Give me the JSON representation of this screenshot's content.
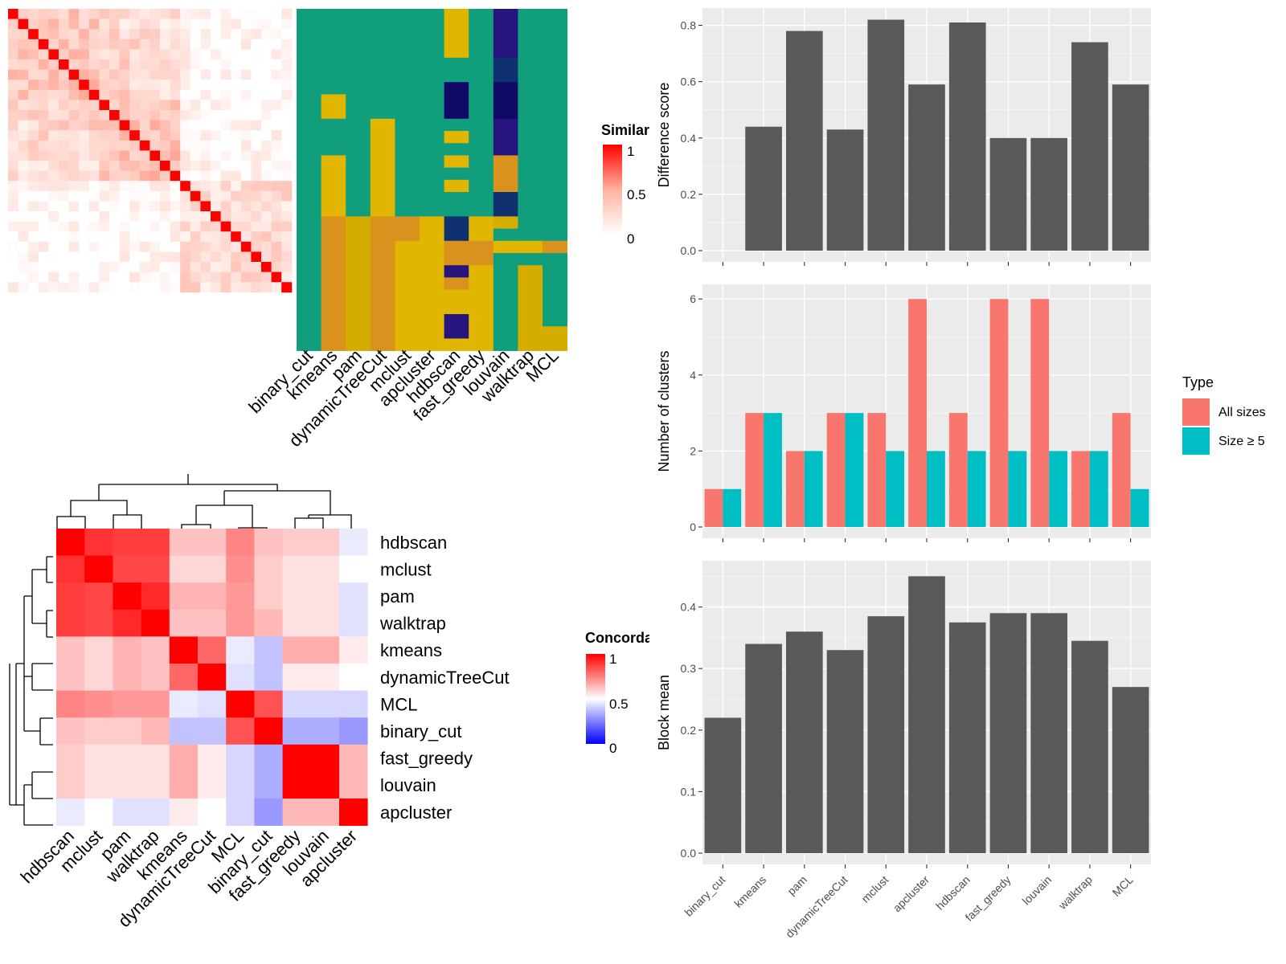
{
  "chart_data": [
    {
      "type": "heatmap",
      "name": "cell_similarity",
      "rows": 28,
      "cols": 28,
      "note_cells": "symmetric similarity matrix, diagonal 1, values 0..1",
      "legend_title": "Similarity",
      "legend_ticks": [
        "1",
        "0.5",
        "0"
      ],
      "colors": {
        "high": "#ff0000",
        "mid": "#ffb1a1",
        "low": "#ffffff"
      }
    },
    {
      "type": "heatmap",
      "name": "cluster_assignments",
      "methods": [
        "binary_cut",
        "kmeans",
        "pam",
        "dynamicTreeCut",
        "mclust",
        "apcluster",
        "hdbscan",
        "fast_greedy",
        "louvain",
        "walktrap",
        "MCL"
      ],
      "palette": {
        "A": "#119e7c",
        "B": "#e0b600",
        "C": "#d9921e",
        "D": "#27147f",
        "E": "#0f316f",
        "F": "#0f0a66",
        "G": "#d4ad00"
      }
    },
    {
      "type": "heatmap",
      "name": "concordance",
      "labels": [
        "hdbscan",
        "mclust",
        "pam",
        "walktrap",
        "kmeans",
        "dynamicTreeCut",
        "MCL",
        "binary_cut",
        "fast_greedy",
        "louvain",
        "apcluster"
      ],
      "values": [
        [
          1.0,
          0.9,
          0.88,
          0.88,
          0.62,
          0.62,
          0.74,
          0.62,
          0.6,
          0.6,
          0.46
        ],
        [
          0.9,
          1.0,
          0.86,
          0.86,
          0.58,
          0.58,
          0.72,
          0.6,
          0.56,
          0.56,
          0.5
        ],
        [
          0.88,
          0.86,
          1.0,
          0.92,
          0.65,
          0.65,
          0.7,
          0.6,
          0.56,
          0.56,
          0.44
        ],
        [
          0.88,
          0.86,
          0.92,
          1.0,
          0.62,
          0.62,
          0.7,
          0.64,
          0.56,
          0.56,
          0.44
        ],
        [
          0.62,
          0.58,
          0.65,
          0.62,
          1.0,
          0.8,
          0.46,
          0.38,
          0.66,
          0.66,
          0.54
        ],
        [
          0.62,
          0.58,
          0.65,
          0.62,
          0.8,
          1.0,
          0.44,
          0.38,
          0.54,
          0.54,
          0.5
        ],
        [
          0.74,
          0.72,
          0.7,
          0.7,
          0.46,
          0.44,
          1.0,
          0.84,
          0.42,
          0.42,
          0.42
        ],
        [
          0.62,
          0.6,
          0.6,
          0.64,
          0.38,
          0.38,
          0.84,
          1.0,
          0.34,
          0.34,
          0.3
        ],
        [
          0.6,
          0.56,
          0.56,
          0.56,
          0.66,
          0.54,
          0.42,
          0.34,
          1.0,
          1.0,
          0.64
        ],
        [
          0.6,
          0.56,
          0.56,
          0.56,
          0.66,
          0.54,
          0.42,
          0.34,
          1.0,
          1.0,
          0.64
        ],
        [
          0.46,
          0.5,
          0.44,
          0.44,
          0.54,
          0.5,
          0.42,
          0.3,
          0.64,
          0.64,
          1.0
        ]
      ],
      "legend_title": "Concordance",
      "legend_ticks": [
        "1",
        "0.5",
        "0"
      ],
      "colors": {
        "high": "#ff0000",
        "mid": "#ffffff",
        "low": "#0000ff"
      }
    },
    {
      "type": "bar",
      "name": "difference_score",
      "categories": [
        "binary_cut",
        "kmeans",
        "pam",
        "dynamicTreeCut",
        "mclust",
        "apcluster",
        "hdbscan",
        "fast_greedy",
        "louvain",
        "walktrap",
        "MCL"
      ],
      "values": [
        0.0,
        0.44,
        0.78,
        0.43,
        0.82,
        0.59,
        0.81,
        0.4,
        0.4,
        0.74,
        0.59
      ],
      "ylabel": "Difference score",
      "ylim": [
        0,
        0.85
      ],
      "yticks": [
        "0.0",
        "0.2",
        "0.4",
        "0.6",
        "0.8"
      ],
      "bar_color": "#595959"
    },
    {
      "type": "bar",
      "name": "number_of_clusters",
      "categories": [
        "binary_cut",
        "kmeans",
        "pam",
        "dynamicTreeCut",
        "mclust",
        "apcluster",
        "hdbscan",
        "fast_greedy",
        "louvain",
        "walktrap",
        "MCL"
      ],
      "series": [
        {
          "name": "All sizes",
          "values": [
            1,
            3,
            2,
            3,
            3,
            6,
            3,
            6,
            6,
            2,
            3
          ],
          "color": "#f8766d"
        },
        {
          "name": "Size ≥ 5",
          "values": [
            1,
            3,
            2,
            3,
            2,
            2,
            2,
            2,
            2,
            2,
            1
          ],
          "color": "#00bfc4"
        }
      ],
      "ylabel": "Number of clusters",
      "ylim": [
        0,
        6.3
      ],
      "yticks": [
        "0",
        "2",
        "4",
        "6"
      ],
      "legend_title": "Type",
      "legend_position": "right"
    },
    {
      "type": "bar",
      "name": "block_mean",
      "categories": [
        "binary_cut",
        "kmeans",
        "pam",
        "dynamicTreeCut",
        "mclust",
        "apcluster",
        "hdbscan",
        "fast_greedy",
        "louvain",
        "walktrap",
        "MCL"
      ],
      "values": [
        0.22,
        0.34,
        0.36,
        0.33,
        0.385,
        0.45,
        0.375,
        0.39,
        0.39,
        0.345,
        0.27
      ],
      "ylabel": "Block mean",
      "ylim": [
        0,
        0.47
      ],
      "yticks": [
        "0.0",
        "0.1",
        "0.2",
        "0.3",
        "0.4"
      ],
      "bar_color": "#595959"
    }
  ]
}
